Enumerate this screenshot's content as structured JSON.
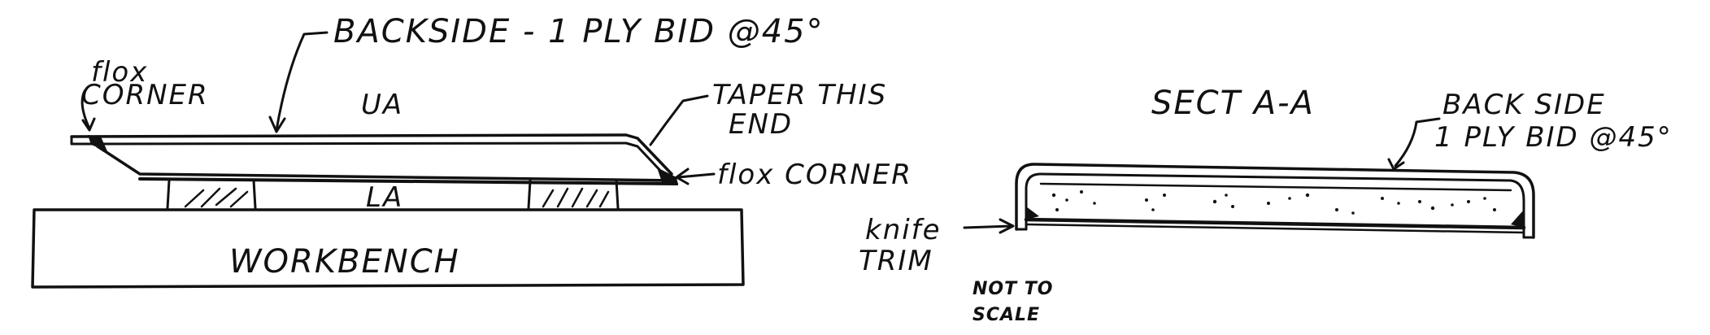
{
  "diagram": {
    "left_view": {
      "labels": {
        "backside": "BACKSIDE - 1 PLY BID @45°",
        "flox_corner_left_line1": "flox",
        "flox_corner_left_line2": "CORNER",
        "ua": "UA",
        "la": "LA",
        "taper_line1": "TAPER THIS",
        "taper_line2": "END",
        "flox_corner_right": "flox CORNER",
        "workbench": "WORKBENCH"
      }
    },
    "right_view": {
      "labels": {
        "section": "SECT A-A",
        "back_side_line1": "BACK SIDE",
        "back_side_line2": "1 PLY BID @45°",
        "knife_trim_line1": "knife",
        "knife_trim_line2": "TRIM",
        "not_to_scale_line1": "NOT TO",
        "not_to_scale_line2": "SCALE"
      }
    },
    "colors": {
      "ink": "#111111",
      "paper": "#ffffff"
    }
  }
}
